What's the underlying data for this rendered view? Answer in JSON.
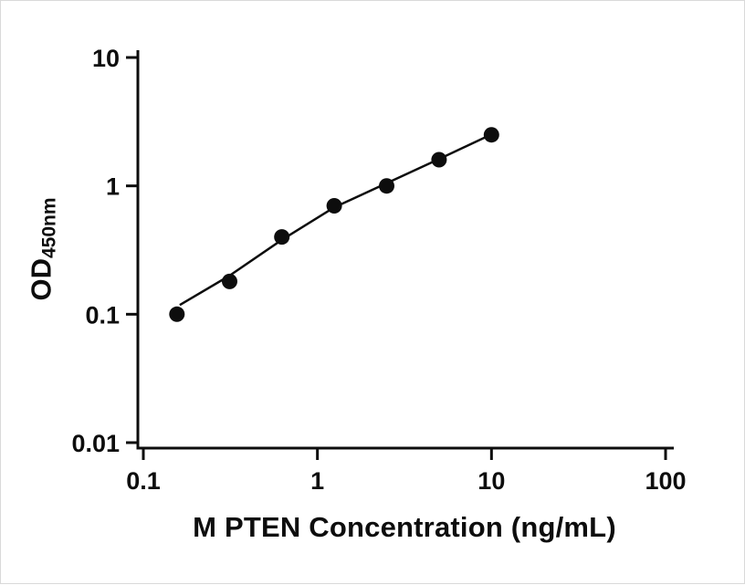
{
  "chart_data": {
    "type": "scatter",
    "title": "",
    "xlabel": "M PTEN Concentration (ng/mL)",
    "ylabel_main": "OD",
    "ylabel_sub": "450nm",
    "x_scale": "log",
    "y_scale": "log",
    "xlim": [
      0.1,
      100
    ],
    "ylim": [
      0.01,
      10
    ],
    "x_ticks": [
      0.1,
      1,
      10,
      100
    ],
    "x_tick_labels": [
      "0.1",
      "1",
      "10",
      "100"
    ],
    "y_ticks": [
      0.01,
      0.1,
      1,
      10
    ],
    "y_tick_labels": [
      "0.01",
      "0.1",
      "1",
      "10"
    ],
    "grid": false,
    "legend": false,
    "series": [
      {
        "type": "scatter",
        "marker": "circle",
        "marker_color": "#0d0d0d",
        "x": [
          0.156,
          0.313,
          0.625,
          1.25,
          2.5,
          5,
          10
        ],
        "y": [
          0.1,
          0.18,
          0.4,
          0.7,
          1.0,
          1.6,
          2.5
        ]
      }
    ],
    "fit_line": {
      "color": "#0d0d0d",
      "x": [
        0.162,
        0.313,
        0.625,
        1.25,
        2.5,
        5,
        10
      ],
      "y": [
        0.118,
        0.2,
        0.38,
        0.68,
        1.05,
        1.62,
        2.52
      ]
    }
  },
  "colors": {
    "axis": "#0d0d0d",
    "background": "#ffffff"
  }
}
